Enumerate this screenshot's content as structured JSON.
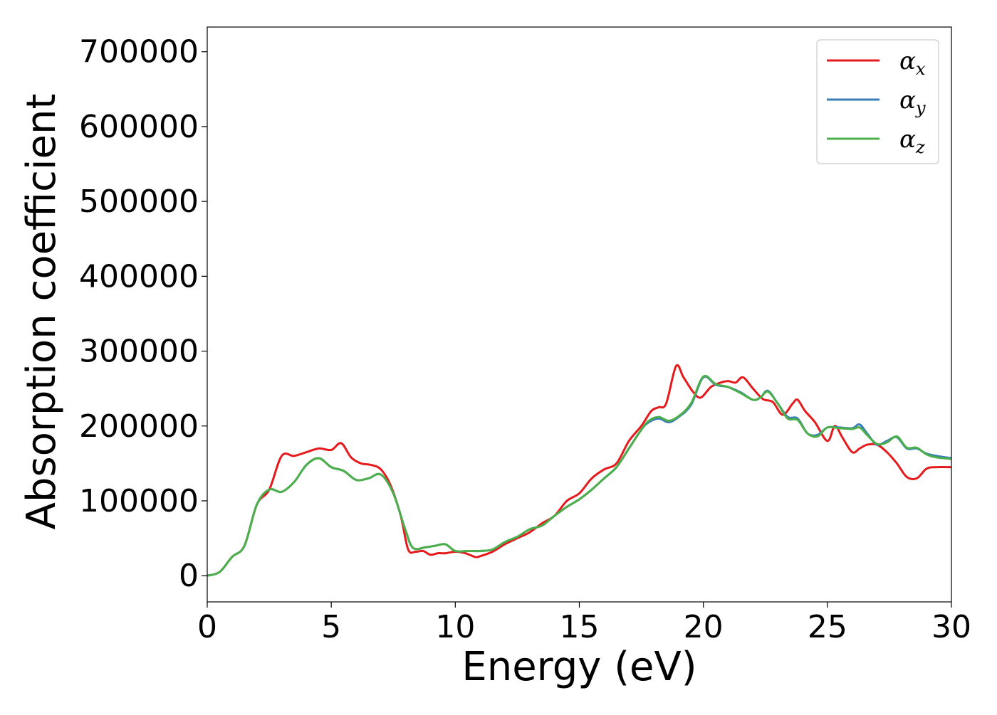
{
  "chart_data": {
    "type": "line",
    "title": "",
    "xlabel": "Energy (eV)",
    "ylabel": "Absorption coefficient",
    "xlim": [
      0,
      30
    ],
    "ylim": [
      -35000,
      733000
    ],
    "xticks": [
      0,
      5,
      10,
      15,
      20,
      25,
      30
    ],
    "yticks": [
      0,
      100000,
      200000,
      300000,
      400000,
      500000,
      600000,
      700000
    ],
    "grid": false,
    "legend_position": "top-right",
    "series": [
      {
        "name": "αx",
        "legend_base": "α",
        "legend_sub": "x",
        "color": "#e41a1c",
        "x": [
          0,
          0.5,
          1.0,
          1.5,
          2.0,
          2.5,
          3.0,
          3.5,
          4.0,
          4.5,
          5.0,
          5.4,
          5.8,
          6.2,
          6.6,
          7.0,
          7.4,
          7.8,
          8.1,
          8.4,
          8.7,
          9.0,
          9.3,
          9.6,
          10.0,
          10.4,
          10.8,
          11.0,
          11.5,
          12.0,
          12.5,
          13.0,
          13.5,
          14.0,
          14.5,
          15.0,
          15.5,
          16.0,
          16.5,
          17.0,
          17.5,
          17.9,
          18.2,
          18.5,
          18.9,
          19.2,
          19.6,
          19.9,
          20.3,
          20.7,
          21.0,
          21.3,
          21.6,
          22.0,
          22.4,
          22.8,
          23.2,
          23.6,
          23.8,
          24.1,
          24.5,
          25.0,
          25.3,
          25.6,
          26.0,
          26.3,
          26.6,
          27.0,
          27.4,
          27.8,
          28.2,
          28.6,
          29.0,
          29.4,
          30.0
        ],
        "y": [
          0,
          5000,
          25000,
          40000,
          95000,
          115000,
          160000,
          160000,
          165000,
          170000,
          168000,
          177000,
          158000,
          150000,
          148000,
          142000,
          120000,
          80000,
          35000,
          32000,
          33000,
          28000,
          30000,
          30000,
          32000,
          30000,
          25000,
          26000,
          32000,
          42000,
          50000,
          58000,
          70000,
          80000,
          100000,
          110000,
          130000,
          142000,
          150000,
          180000,
          200000,
          220000,
          225000,
          230000,
          280000,
          265000,
          245000,
          238000,
          252000,
          258000,
          260000,
          258000,
          265000,
          250000,
          236000,
          232000,
          215000,
          230000,
          235000,
          220000,
          205000,
          180000,
          200000,
          185000,
          165000,
          170000,
          175000,
          175000,
          165000,
          150000,
          132000,
          130000,
          143000,
          145000,
          145000
        ]
      },
      {
        "name": "αy",
        "legend_base": "α",
        "legend_sub": "y",
        "color": "#377eb8",
        "x": [
          0,
          0.5,
          1.0,
          1.5,
          2.0,
          2.5,
          3.0,
          3.5,
          4.0,
          4.5,
          5.0,
          5.5,
          6.0,
          6.5,
          7.0,
          7.5,
          8.0,
          8.3,
          8.8,
          9.2,
          9.6,
          10.0,
          10.5,
          11.0,
          11.5,
          12.0,
          12.5,
          13.0,
          13.5,
          14.0,
          14.5,
          15.0,
          15.5,
          16.0,
          16.5,
          17.0,
          17.5,
          17.8,
          18.2,
          18.6,
          19.0,
          19.5,
          20.0,
          20.5,
          21.0,
          21.5,
          22.0,
          22.3,
          22.6,
          23.0,
          23.4,
          23.8,
          24.2,
          24.6,
          25.0,
          25.5,
          26.0,
          26.3,
          26.6,
          27.0,
          27.4,
          27.8,
          28.2,
          28.6,
          29.0,
          29.4,
          30.0
        ],
        "y": [
          0,
          5000,
          25000,
          40000,
          95000,
          115000,
          112000,
          125000,
          148000,
          157000,
          145000,
          140000,
          128000,
          130000,
          135000,
          110000,
          60000,
          37000,
          38000,
          40000,
          42000,
          33000,
          33000,
          33000,
          35000,
          45000,
          52000,
          62000,
          67000,
          80000,
          92000,
          102000,
          115000,
          130000,
          145000,
          170000,
          195000,
          205000,
          210000,
          205000,
          212000,
          228000,
          265000,
          255000,
          252000,
          245000,
          235000,
          238000,
          247000,
          230000,
          212000,
          210000,
          190000,
          188000,
          198000,
          198000,
          197000,
          202000,
          190000,
          175000,
          180000,
          185000,
          170000,
          170000,
          163000,
          160000,
          157000
        ]
      },
      {
        "name": "αz",
        "legend_base": "α",
        "legend_sub": "z",
        "color": "#4daf4a",
        "x": [
          0,
          0.5,
          1.0,
          1.5,
          2.0,
          2.5,
          3.0,
          3.5,
          4.0,
          4.5,
          5.0,
          5.5,
          6.0,
          6.5,
          7.0,
          7.5,
          8.0,
          8.3,
          8.8,
          9.2,
          9.6,
          10.0,
          10.5,
          11.0,
          11.5,
          12.0,
          12.5,
          13.0,
          13.5,
          14.0,
          14.5,
          15.0,
          15.5,
          16.0,
          16.5,
          17.0,
          17.5,
          17.8,
          18.2,
          18.6,
          19.0,
          19.5,
          20.0,
          20.5,
          21.0,
          21.5,
          22.0,
          22.3,
          22.6,
          23.0,
          23.4,
          23.8,
          24.2,
          24.6,
          25.0,
          25.5,
          26.0,
          26.3,
          26.6,
          27.0,
          27.4,
          27.8,
          28.2,
          28.6,
          29.0,
          29.4,
          30.0
        ],
        "y": [
          0,
          5000,
          25000,
          40000,
          95000,
          115000,
          112000,
          125000,
          148000,
          157000,
          145000,
          140000,
          128000,
          130000,
          135000,
          110000,
          60000,
          37000,
          38000,
          40000,
          42000,
          33000,
          33000,
          33000,
          35000,
          45000,
          52000,
          62000,
          67000,
          80000,
          92000,
          102000,
          115000,
          130000,
          145000,
          170000,
          195000,
          207000,
          212000,
          207000,
          213000,
          230000,
          266000,
          256000,
          252000,
          244000,
          235000,
          238000,
          246000,
          230000,
          210000,
          208000,
          190000,
          186000,
          198000,
          197000,
          196000,
          198000,
          188000,
          176000,
          178000,
          186000,
          171000,
          171000,
          162000,
          158000,
          156000
        ]
      }
    ]
  }
}
